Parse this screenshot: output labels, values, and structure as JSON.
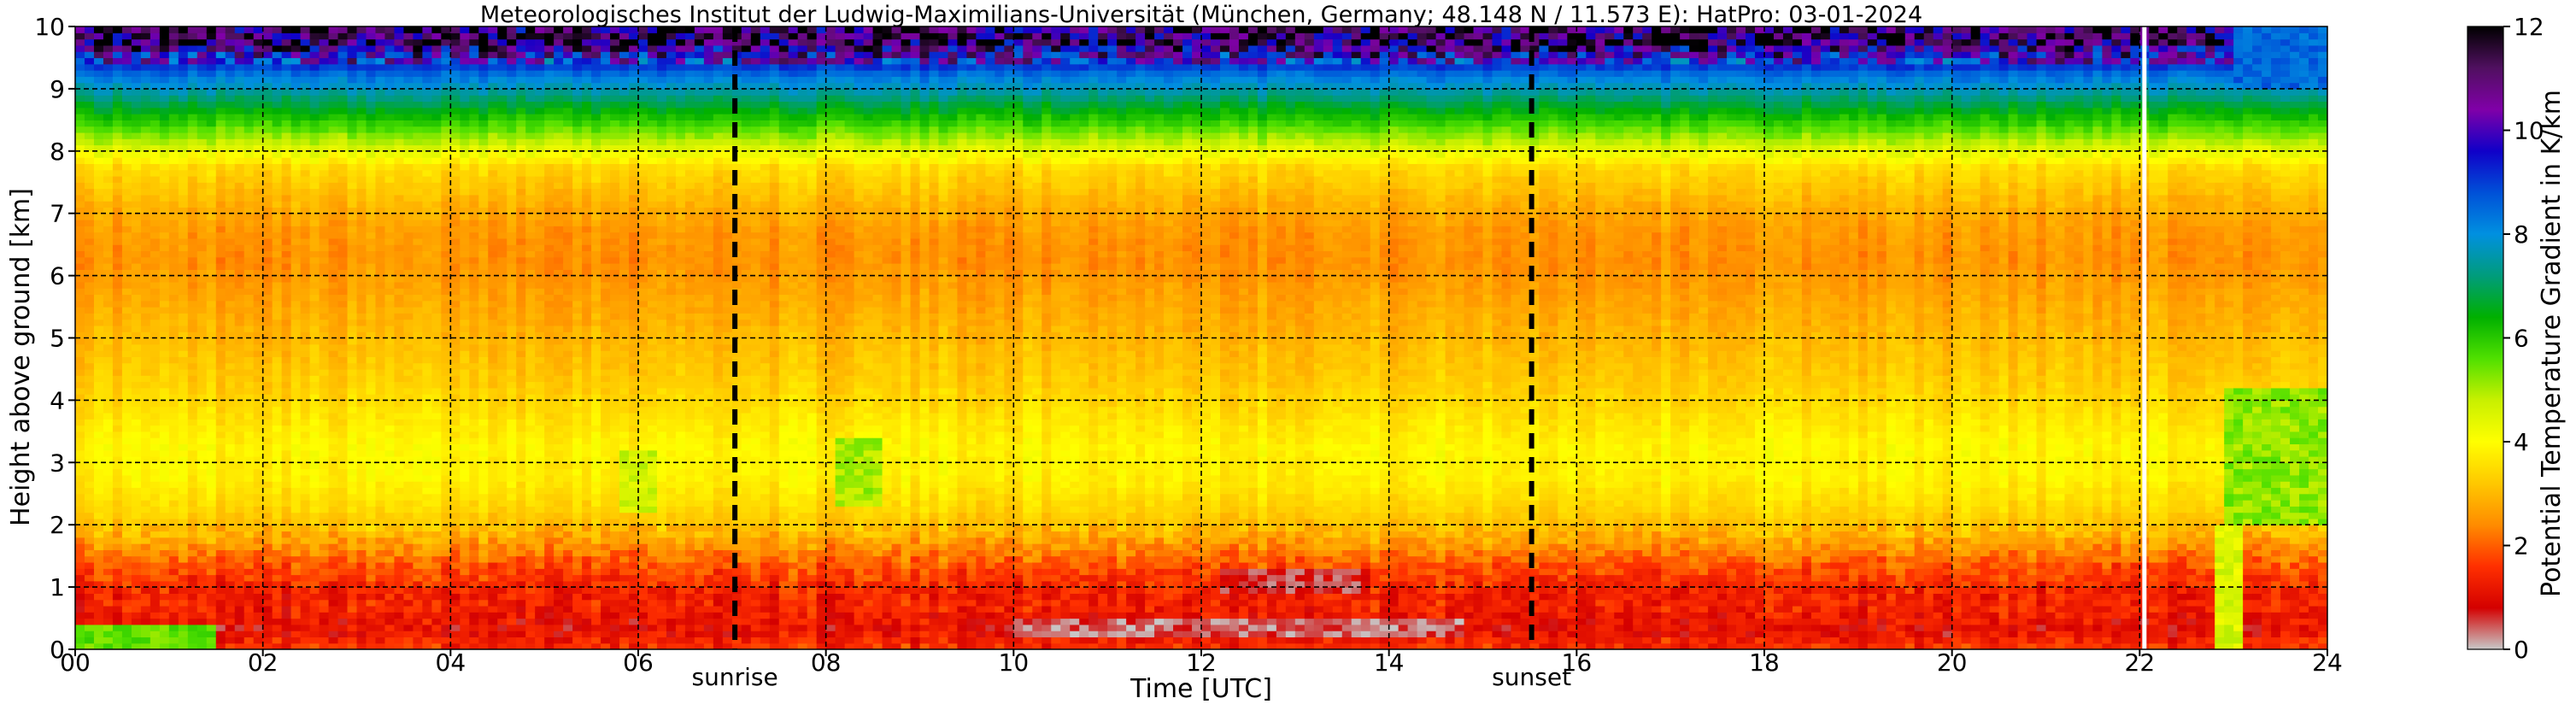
{
  "chart_data": {
    "type": "heatmap",
    "title": "Meteorologisches Institut der Ludwig-Maximilians-Universität (München, Germany; 48.148 N / 11.573 E):    HatPro: 03-01-2024",
    "xlabel": "Time [UTC]",
    "ylabel": "Height above ground [km]",
    "xlim": [
      0,
      24
    ],
    "ylim": [
      0,
      10
    ],
    "x_ticks": [
      0,
      2,
      4,
      6,
      8,
      10,
      12,
      14,
      16,
      18,
      20,
      22,
      24
    ],
    "x_tick_labels": [
      "00",
      "02",
      "04",
      "06",
      "08",
      "10",
      "12",
      "14",
      "16",
      "18",
      "20",
      "22",
      "24"
    ],
    "y_ticks": [
      0,
      1,
      2,
      3,
      4,
      5,
      6,
      7,
      8,
      9,
      10
    ],
    "y_tick_labels": [
      "0",
      "1",
      "2",
      "3",
      "4",
      "5",
      "6",
      "7",
      "8",
      "9",
      "10"
    ],
    "grid": true,
    "colorbar": {
      "label": "Potential Temperature Gradient in K/km",
      "range": [
        0,
        12
      ],
      "ticks": [
        0,
        2,
        4,
        6,
        8,
        10,
        12
      ],
      "tick_labels": [
        "0",
        "2",
        "4",
        "6",
        "8",
        "10",
        "12"
      ],
      "colormap": [
        "#c8c8c8",
        "#d40000",
        "#ff3000",
        "#ff8c00",
        "#ffc800",
        "#ffff00",
        "#c8f000",
        "#50e000",
        "#00b000",
        "#009c7c",
        "#0090e0",
        "#0050d8",
        "#1000c8",
        "#8000a8",
        "#501060",
        "#000000"
      ]
    },
    "events": [
      {
        "label": "sunrise",
        "time": 7.03
      },
      {
        "label": "sunset",
        "time": 15.52
      }
    ],
    "data_gap_time": 22.05,
    "profile_height_km": [
      0.1,
      0.3,
      0.5,
      0.7,
      0.9,
      1.1,
      1.3,
      1.5,
      1.7,
      1.9,
      2.25,
      2.75,
      3.25,
      3.75,
      4.25,
      4.75,
      5.25,
      5.75,
      6.25,
      6.75,
      7.25,
      7.75,
      8.25,
      8.75,
      9.25,
      9.75
    ],
    "typical_gradient_K_per_km": [
      1.5,
      1.0,
      1.2,
      1.4,
      1.3,
      1.6,
      1.8,
      2.2,
      2.6,
      3.0,
      3.4,
      3.8,
      3.9,
      3.6,
      3.3,
      3.1,
      2.9,
      2.7,
      2.5,
      2.6,
      3.0,
      3.5,
      5.2,
      6.8,
      8.5,
      11.0
    ],
    "features": [
      {
        "time_range": [
          0,
          1.5
        ],
        "height_range_km": [
          0,
          0.4
        ],
        "gradient_K_per_km": 5.5
      },
      {
        "time_range": [
          10,
          14.8
        ],
        "height_range_km": [
          0.2,
          0.5
        ],
        "gradient_K_per_km": 0.4
      },
      {
        "time_range": [
          12.2,
          13.8
        ],
        "height_range_km": [
          0.9,
          1.3
        ],
        "gradient_K_per_km": 0.6
      },
      {
        "time_range": [
          8.1,
          8.6
        ],
        "height_range_km": [
          2.3,
          3.4
        ],
        "gradient_K_per_km": 5.0
      },
      {
        "time_range": [
          5.8,
          6.2
        ],
        "height_range_km": [
          2.2,
          3.2
        ],
        "gradient_K_per_km": 4.6
      },
      {
        "time_range": [
          22.9,
          24
        ],
        "height_range_km": [
          2.0,
          4.2
        ],
        "gradient_K_per_km": 5.2
      },
      {
        "time_range": [
          22.85,
          23.05
        ],
        "height_range_km": [
          0,
          2.0
        ],
        "gradient_K_per_km": 4.5
      },
      {
        "time_range": [
          23.0,
          24
        ],
        "height_range_km": [
          9.0,
          10.0
        ],
        "gradient_K_per_km": 8.5
      }
    ]
  }
}
